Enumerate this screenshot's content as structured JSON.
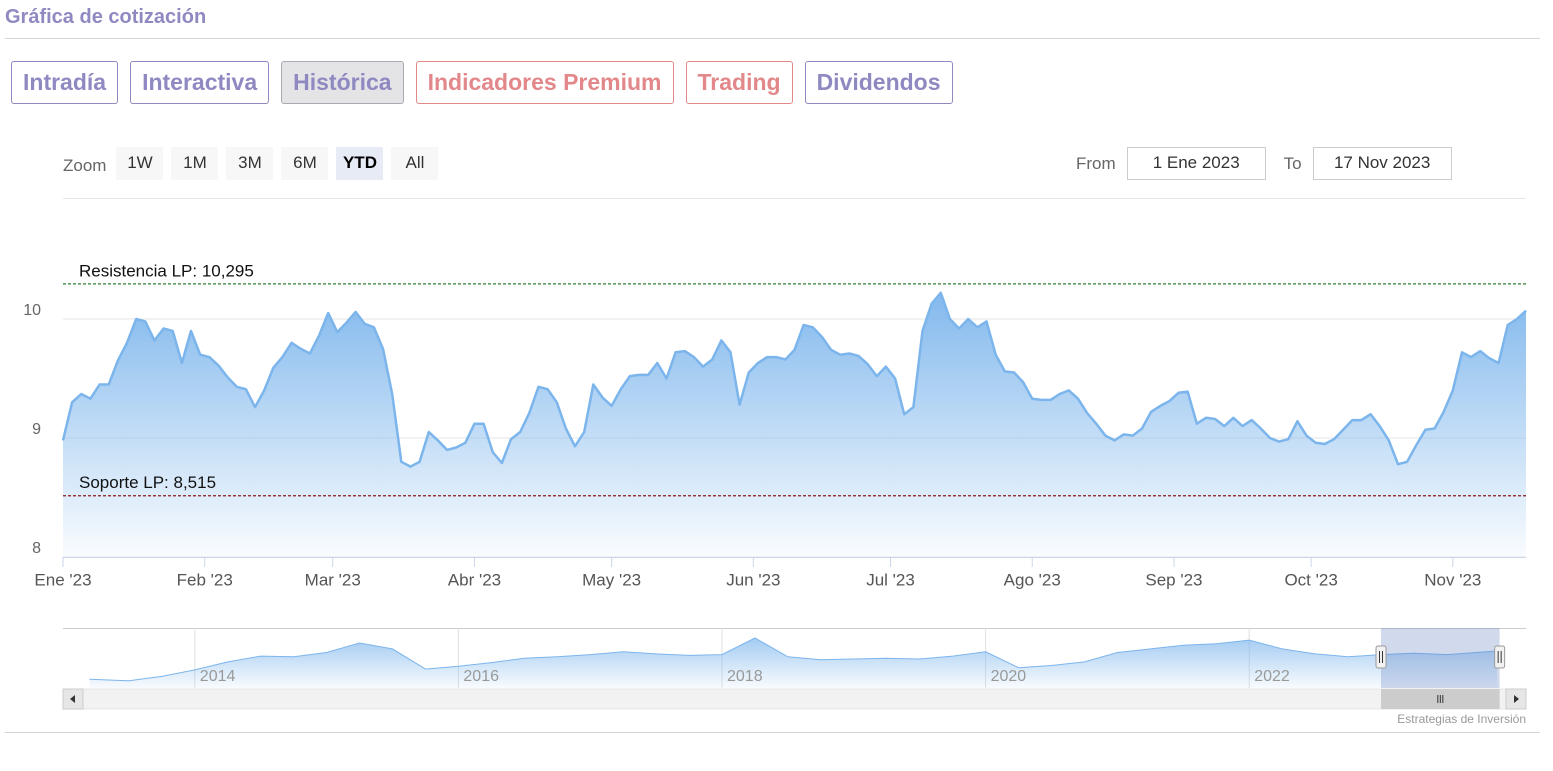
{
  "header": {
    "title": "Gráfica de cotización"
  },
  "tabs": [
    {
      "label": "Intradía",
      "color": "#8f89c2"
    },
    {
      "label": "Interactiva",
      "color": "#8f89c2"
    },
    {
      "label": "Histórica",
      "color": "#8f89c2"
    },
    {
      "label": "Indicadores Premium",
      "color": "#e3888a"
    },
    {
      "label": "Trading",
      "color": "#e3888a"
    },
    {
      "label": "Dividendos",
      "color": "#8f89c2"
    }
  ],
  "active_tab": 2,
  "zoom": {
    "label": "Zoom",
    "buttons": [
      "1W",
      "1M",
      "3M",
      "6M",
      "YTD",
      "All"
    ],
    "active": 4
  },
  "range": {
    "from_label": "From",
    "from": "1 Ene 2023",
    "to_label": "To",
    "to": "17 Nov 2023"
  },
  "credit": "Estrategias de Inversión",
  "chart_data": {
    "type": "area",
    "ylim": [
      8,
      11
    ],
    "yticks": [
      8,
      9,
      10
    ],
    "xlim": [
      0,
      320
    ],
    "xticks": [
      {
        "value": 0,
        "label": "Ene '23"
      },
      {
        "value": 31,
        "label": "Feb '23"
      },
      {
        "value": 59,
        "label": "Mar '23"
      },
      {
        "value": 90,
        "label": "Abr '23"
      },
      {
        "value": 120,
        "label": "May '23"
      },
      {
        "value": 151,
        "label": "Jun '23"
      },
      {
        "value": 181,
        "label": "Jul '23"
      },
      {
        "value": 212,
        "label": "Ago '23"
      },
      {
        "value": 243,
        "label": "Sep '23"
      },
      {
        "value": 273,
        "label": "Oct '23"
      },
      {
        "value": 304,
        "label": "Nov '23"
      }
    ],
    "grid": true,
    "series": [
      {
        "color": "#7cb5ec",
        "x": [
          0,
          2,
          4,
          6,
          8,
          10,
          12,
          14,
          16,
          18,
          20,
          22,
          24,
          26,
          28,
          30,
          32,
          34,
          36,
          38,
          40,
          42,
          44,
          46,
          48,
          50,
          52,
          54,
          56,
          58,
          60,
          62,
          64,
          66,
          68,
          70,
          72,
          74,
          76,
          78,
          80,
          82,
          84,
          86,
          88,
          90,
          92,
          94,
          96,
          98,
          100,
          102,
          104,
          106,
          108,
          110,
          112,
          114,
          116,
          118,
          120,
          122,
          124,
          126,
          128,
          130,
          132,
          134,
          136,
          138,
          140,
          142,
          144,
          146,
          148,
          150,
          152,
          154,
          156,
          158,
          160,
          162,
          164,
          166,
          168,
          170,
          172,
          174,
          176,
          178,
          180,
          182,
          184,
          186,
          188,
          190,
          192,
          194,
          196,
          198,
          200,
          202,
          204,
          206,
          208,
          210,
          212,
          214,
          216,
          218,
          220,
          222,
          224,
          226,
          228,
          230,
          232,
          234,
          236,
          238,
          240,
          242,
          244,
          246,
          248,
          250,
          252,
          254,
          256,
          258,
          260,
          262,
          264,
          266,
          268,
          270,
          272,
          274,
          276,
          278,
          280,
          282,
          284,
          286,
          288,
          290,
          292,
          294,
          296,
          298,
          300,
          302,
          304,
          306,
          308,
          310,
          312,
          314,
          316,
          318,
          320
        ],
        "values": [
          8.98,
          9.3,
          9.37,
          9.33,
          9.45,
          9.45,
          9.65,
          9.8,
          10.0,
          9.98,
          9.82,
          9.92,
          9.9,
          9.63,
          9.9,
          9.7,
          9.68,
          9.61,
          9.51,
          9.43,
          9.41,
          9.26,
          9.4,
          9.59,
          9.68,
          9.8,
          9.75,
          9.71,
          9.86,
          10.05,
          9.89,
          9.97,
          10.06,
          9.96,
          9.93,
          9.75,
          9.37,
          8.8,
          8.76,
          8.8,
          9.05,
          8.98,
          8.9,
          8.92,
          8.96,
          9.12,
          9.12,
          8.88,
          8.79,
          8.99,
          9.05,
          9.21,
          9.43,
          9.41,
          9.3,
          9.08,
          8.93,
          9.05,
          9.45,
          9.34,
          9.27,
          9.41,
          9.52,
          9.53,
          9.53,
          9.63,
          9.5,
          9.72,
          9.73,
          9.68,
          9.6,
          9.66,
          9.82,
          9.72,
          9.28,
          9.55,
          9.63,
          9.68,
          9.68,
          9.66,
          9.74,
          9.95,
          9.93,
          9.85,
          9.74,
          9.7,
          9.71,
          9.69,
          9.62,
          9.52,
          9.6,
          9.5,
          9.2,
          9.26,
          9.9,
          10.13,
          10.22,
          10.0,
          9.92,
          10.0,
          9.93,
          9.98,
          9.7,
          9.56,
          9.55,
          9.47,
          9.33,
          9.32,
          9.32,
          9.37,
          9.4,
          9.33,
          9.21,
          9.12,
          9.02,
          8.98,
          9.03,
          9.02,
          9.08,
          9.22,
          9.27,
          9.31,
          9.38,
          9.39,
          9.12,
          9.17,
          9.16,
          9.1,
          9.17,
          9.1,
          9.15,
          9.08,
          9.0,
          8.97,
          8.99,
          9.14,
          9.02,
          8.96,
          8.95,
          8.99,
          9.07,
          9.15,
          9.15,
          9.2,
          9.1,
          8.98,
          8.78,
          8.8,
          8.94,
          9.07,
          9.08,
          9.22,
          9.4,
          9.72,
          9.68,
          9.73,
          9.67,
          9.63,
          9.95,
          10.0,
          10.07
        ]
      }
    ],
    "annotations": [
      {
        "label": "Resistencia LP: 10,295",
        "value": 10.295,
        "color": "#2e7d32"
      },
      {
        "label": "Soporte LP: 8,515",
        "value": 8.515,
        "color": "#8b1a1a"
      }
    ],
    "navigator": {
      "xlim": [
        2013,
        2024.1
      ],
      "ylim": [
        4,
        12
      ],
      "xticks": [
        2014,
        2016,
        2018,
        2020,
        2022
      ],
      "range": [
        2023.0,
        2023.9
      ],
      "x": [
        2013.2,
        2013.5,
        2013.75,
        2014,
        2014.25,
        2014.5,
        2014.75,
        2015,
        2015.25,
        2015.5,
        2015.75,
        2016,
        2016.25,
        2016.5,
        2016.75,
        2017,
        2017.25,
        2017.5,
        2017.75,
        2018,
        2018.25,
        2018.5,
        2018.75,
        2019,
        2019.25,
        2019.5,
        2019.75,
        2020,
        2020.25,
        2020.5,
        2020.75,
        2021,
        2021.25,
        2021.5,
        2021.75,
        2022,
        2022.25,
        2022.5,
        2022.75,
        2023,
        2023.25,
        2023.5,
        2023.88
      ],
      "values": [
        5.2,
        5.0,
        5.6,
        6.5,
        7.6,
        8.4,
        8.3,
        8.9,
        10.2,
        9.4,
        6.6,
        7.0,
        7.5,
        8.1,
        8.3,
        8.6,
        9.0,
        8.7,
        8.5,
        8.6,
        10.9,
        8.3,
        7.9,
        8.0,
        8.1,
        8.0,
        8.4,
        9.0,
        6.8,
        7.1,
        7.6,
        8.9,
        9.4,
        9.9,
        10.1,
        10.6,
        9.4,
        8.7,
        8.3,
        8.6,
        8.8,
        8.6,
        9.1
      ]
    }
  }
}
